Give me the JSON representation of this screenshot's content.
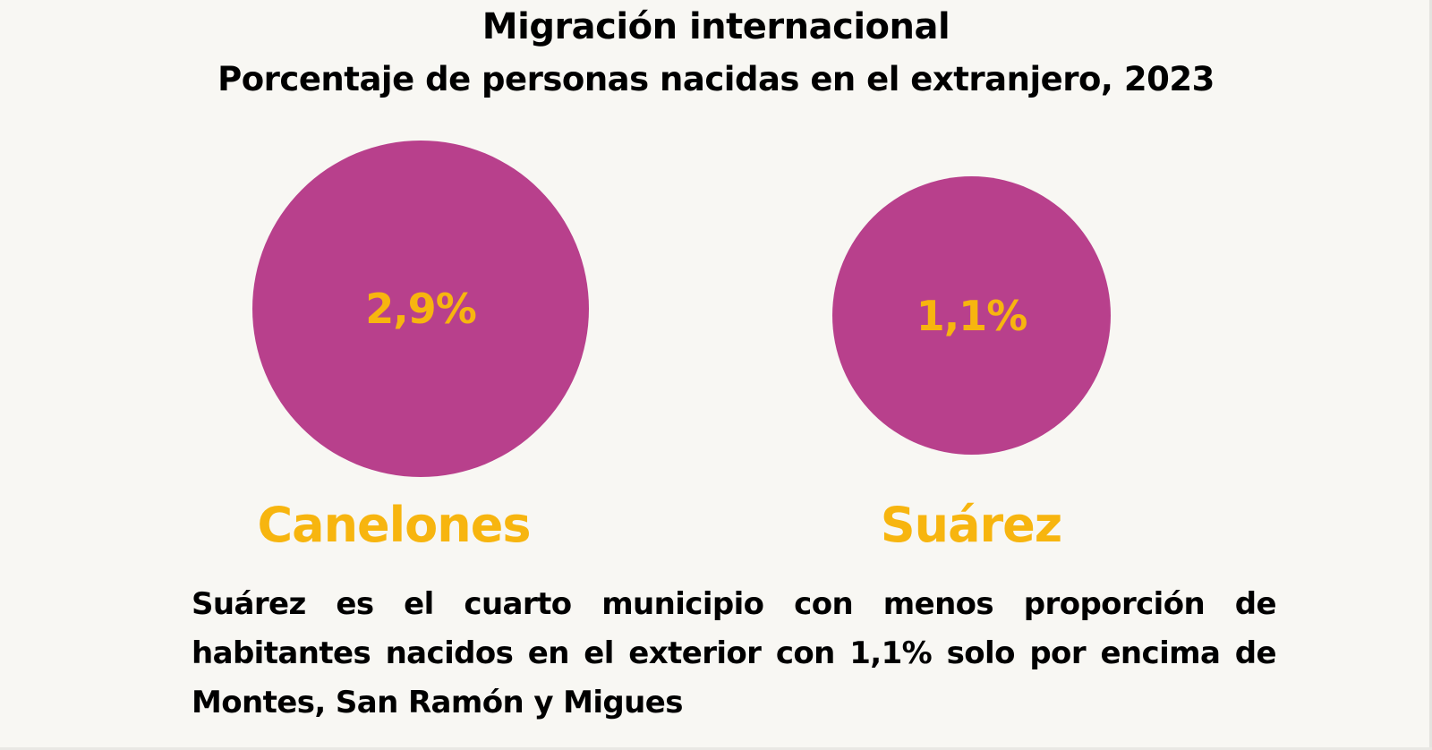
{
  "header": {
    "title": "Migración internacional",
    "subtitle": "Porcentaje de personas nacidas en el extranjero, 2023"
  },
  "colors": {
    "background": "#f8f7f3",
    "circle": "#b8408c",
    "accent": "#f7b50f",
    "text": "#000000"
  },
  "bubbles": [
    {
      "name": "Canelones",
      "value_label": "2,9%"
    },
    {
      "name": "Suárez",
      "value_label": "1,1%"
    }
  ],
  "note": "Suárez es el cuarto municipio con menos proporción de habitantes nacidos en el exterior con 1,1% solo por encima de Montes, San Ramón y Migues",
  "chart_data": {
    "type": "bubble",
    "title": "Migración internacional",
    "subtitle": "Porcentaje de personas nacidas en el extranjero, 2023",
    "categories": [
      "Canelones",
      "Suárez"
    ],
    "values": [
      2.9,
      1.1
    ],
    "value_labels": [
      "2,9%",
      "1,1%"
    ],
    "unit": "%",
    "xlabel": "",
    "ylabel": "",
    "legend": "none",
    "grid": false,
    "annotation": "Suárez es el cuarto municipio con menos proporción de habitantes nacidos en el exterior con 1,1% solo por encima de Montes, San Ramón y Migues"
  }
}
